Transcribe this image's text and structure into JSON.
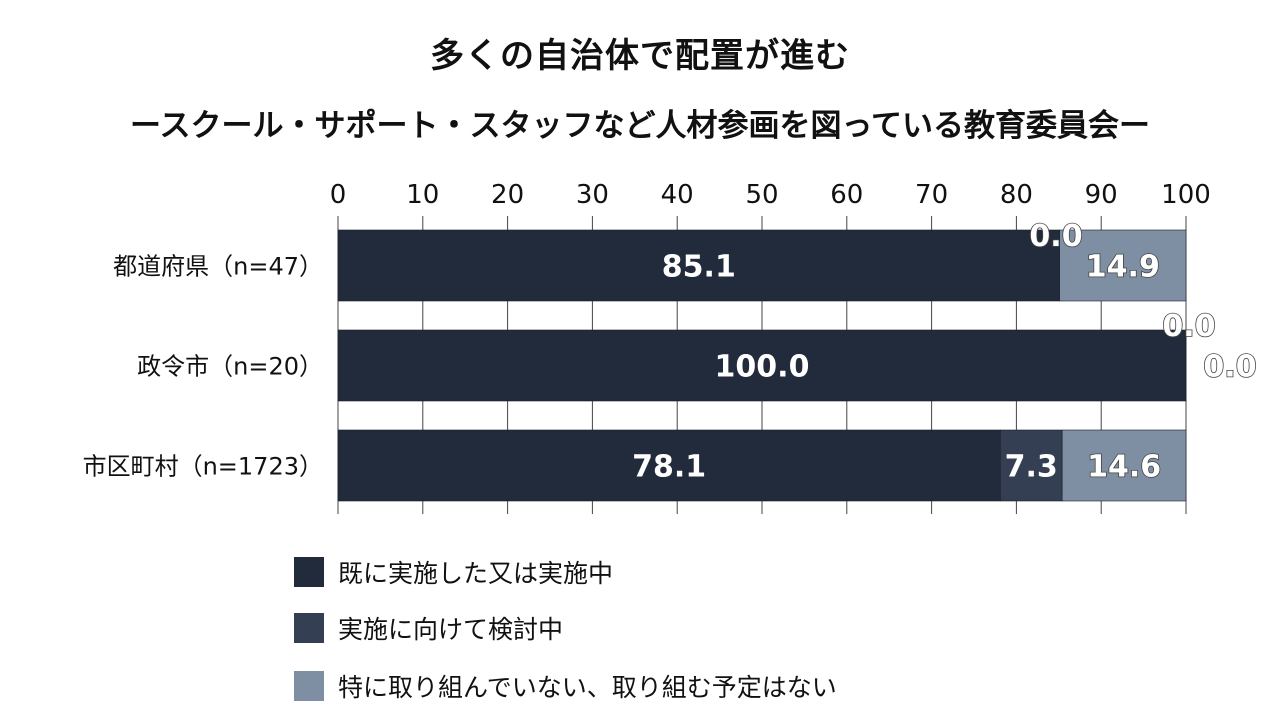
{
  "title": "多くの自治体で配置が進む",
  "subtitle": "ースクール・サポート・スタッフなど人材参画を図っている教育委員会ー",
  "chart_data": {
    "type": "bar",
    "orientation": "horizontal",
    "stacked": true,
    "categories": [
      "都道府県（n=47）",
      "政令市（n=20）",
      "市区町村（n=1723）"
    ],
    "series": [
      {
        "name": "既に実施した又は実施中",
        "values": [
          85.1,
          100.0,
          78.1
        ],
        "color": "#222b3b"
      },
      {
        "name": "実施に向けて検討中",
        "values": [
          0.0,
          0.0,
          7.3
        ],
        "color": "#343f54"
      },
      {
        "name": "特に取り組んでいない、取り組む予定はない",
        "values": [
          14.9,
          0.0,
          14.6
        ],
        "color": "#7e8fa3"
      }
    ],
    "data_labels": [
      [
        "85.1",
        "0.0",
        "14.9"
      ],
      [
        "100.0",
        "0.0",
        "0.0"
      ],
      [
        "78.1",
        "7.3",
        "14.6"
      ]
    ],
    "xlim": [
      0,
      100
    ],
    "xticks": [
      0,
      10,
      20,
      30,
      40,
      50,
      60,
      70,
      80,
      90,
      100
    ],
    "xaxis_position": "top",
    "grid": true,
    "legend": "bottom"
  }
}
